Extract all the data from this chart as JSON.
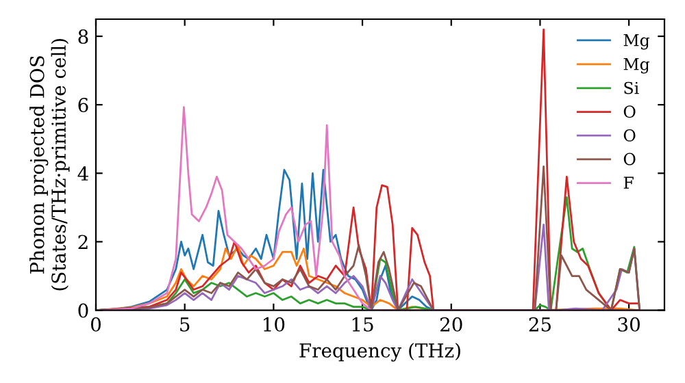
{
  "chart_data": {
    "type": "line",
    "xlabel": "Frequency (THz)",
    "ylabel": "Phonon projected DOS\n(States/THz·primitive cell)",
    "xlim": [
      0,
      32
    ],
    "ylim": [
      0,
      8.5
    ],
    "xticks": [
      0,
      5,
      10,
      15,
      20,
      25,
      30
    ],
    "yticks": [
      0,
      2,
      4,
      6,
      8
    ],
    "legend": "top right",
    "grid": false,
    "series": [
      {
        "name": "Mg",
        "color": "#1f77b4",
        "x": [
          0,
          1,
          2,
          3,
          4,
          4.5,
          4.8,
          5,
          5.2,
          5.5,
          6,
          6.3,
          6.6,
          6.9,
          7.2,
          7.5,
          8,
          8.3,
          8.6,
          9,
          9.3,
          9.6,
          10,
          10.3,
          10.6,
          10.9,
          11.3,
          11.6,
          11.9,
          12.2,
          12.5,
          12.8,
          13.2,
          13.5,
          13.8,
          14.2,
          14.6,
          15,
          15.3,
          15.5,
          15.8,
          16,
          16.3,
          16.6,
          17,
          17.8,
          18.2,
          18.6,
          19,
          25,
          30.6
        ],
        "values": [
          0,
          0.03,
          0.1,
          0.25,
          0.6,
          1.2,
          2.0,
          1.6,
          1.8,
          1.2,
          2.2,
          1.4,
          1.3,
          2.9,
          2.2,
          1.6,
          1.8,
          1.6,
          1.5,
          1.8,
          1.5,
          2.2,
          1.5,
          2.9,
          4.1,
          3.8,
          1.5,
          3.7,
          1.5,
          4.0,
          2.0,
          4.1,
          2.0,
          2.2,
          1.5,
          1.0,
          0.9,
          0.6,
          0.2,
          0,
          0.3,
          0.9,
          1.3,
          0.5,
          0,
          0.4,
          0.3,
          0.1,
          0,
          0,
          0
        ]
      },
      {
        "name": "Mg",
        "color": "#ff7f0e",
        "x": [
          0,
          2,
          3,
          4,
          4.5,
          4.8,
          5.1,
          5.5,
          6,
          6.5,
          7,
          7.3,
          7.6,
          8,
          8.3,
          8.7,
          9,
          9.5,
          10,
          10.5,
          11,
          11.3,
          11.7,
          12,
          12.5,
          13,
          13.5,
          14,
          14.5,
          15,
          15.5,
          16,
          16.5,
          17,
          17.8,
          18.5,
          19,
          25,
          28,
          29.5,
          30.5
        ],
        "values": [
          0,
          0.08,
          0.2,
          0.4,
          0.8,
          1.2,
          0.9,
          0.7,
          1.0,
          0.9,
          1.2,
          1.8,
          1.5,
          1.9,
          1.3,
          1.6,
          1.5,
          1.2,
          1.3,
          1.7,
          1.7,
          1.3,
          1.8,
          1.0,
          0.9,
          0.8,
          0.7,
          0.5,
          0.4,
          0.3,
          0.1,
          0.3,
          0.2,
          0,
          0.1,
          0.05,
          0,
          0,
          0.05,
          0.05,
          0
        ]
      },
      {
        "name": "Si",
        "color": "#2ca02c",
        "x": [
          0,
          3,
          4,
          4.5,
          5,
          5.5,
          6,
          6.5,
          7,
          7.5,
          8,
          8.5,
          9,
          9.5,
          10,
          10.5,
          11,
          11.5,
          12,
          12.5,
          13,
          13.5,
          14,
          14.5,
          15,
          15.5,
          16,
          16.3,
          16.7,
          17,
          18,
          19,
          24.7,
          25,
          25.3,
          25.6,
          26,
          26.5,
          26.8,
          27.1,
          27.4,
          27.8,
          28.3,
          29,
          29.5,
          29.9,
          30.3,
          30.6
        ],
        "values": [
          0,
          0.1,
          0.2,
          0.5,
          0.9,
          0.5,
          0.6,
          0.8,
          0.7,
          0.8,
          0.6,
          0.4,
          0.5,
          0.4,
          0.5,
          0.3,
          0.4,
          0.2,
          0.3,
          0.2,
          0.3,
          0.2,
          0.2,
          0.1,
          0.1,
          0,
          1.5,
          1.4,
          0.5,
          0,
          0.1,
          0,
          0,
          0.15,
          0.1,
          0,
          1.5,
          3.3,
          1.8,
          1.7,
          1.8,
          1.2,
          0.5,
          0,
          1.2,
          1.1,
          1.85,
          0
        ]
      },
      {
        "name": "O",
        "color": "#d62728",
        "x": [
          0,
          3,
          4,
          4.5,
          4.8,
          5.1,
          5.5,
          6,
          6.5,
          7,
          7.5,
          7.8,
          8.2,
          8.6,
          9,
          9.5,
          10,
          10.5,
          11,
          11.5,
          12,
          12.5,
          13,
          13.5,
          14,
          14.5,
          14.8,
          15.2,
          15.5,
          15.8,
          16.1,
          16.4,
          16.7,
          17,
          17.5,
          17.8,
          18.1,
          18.5,
          18.8,
          19,
          24.6,
          25.2,
          25.6,
          25.9,
          26.2,
          26.5,
          26.9,
          27.3,
          27.7,
          28.3,
          29,
          29.5,
          30,
          30.5
        ],
        "values": [
          0,
          0.1,
          0.3,
          0.6,
          1.1,
          0.9,
          0.6,
          0.7,
          1.0,
          1.3,
          1.5,
          2.0,
          1.4,
          1.1,
          1.3,
          0.8,
          0.6,
          0.9,
          0.7,
          1.3,
          0.8,
          1.0,
          0.9,
          1.3,
          1.0,
          3.0,
          1.8,
          1.2,
          0,
          3.0,
          3.65,
          3.6,
          2.5,
          0,
          0,
          2.4,
          2.2,
          1.4,
          1.0,
          0,
          0,
          8.2,
          0,
          0,
          2.0,
          3.9,
          2.0,
          1.5,
          1.3,
          0.5,
          0,
          0.3,
          0.2,
          0.2
        ]
      },
      {
        "name": "O",
        "color": "#9467bd",
        "x": [
          0,
          3,
          4,
          4.5,
          5,
          5.5,
          6,
          6.5,
          7,
          7.5,
          8,
          8.5,
          9,
          9.5,
          10,
          10.5,
          11,
          11.5,
          12,
          12.5,
          13,
          13.5,
          14,
          14.5,
          15,
          15.5,
          16,
          16.3,
          16.7,
          17,
          17.8,
          18.2,
          18.6,
          19,
          24.7,
          25.2,
          25.5,
          26,
          27,
          28.5,
          29.3,
          29.6,
          30,
          30.3,
          30.6
        ],
        "values": [
          0,
          0.05,
          0.15,
          0.3,
          0.5,
          0.3,
          0.5,
          0.3,
          0.8,
          0.6,
          1.0,
          0.9,
          0.8,
          0.5,
          0.6,
          0.7,
          0.9,
          0.6,
          0.7,
          0.5,
          0.7,
          0.5,
          0.8,
          1.0,
          0.7,
          0,
          1.0,
          0.8,
          0.3,
          0,
          0.9,
          0.6,
          0.3,
          0,
          0,
          2.5,
          0,
          0,
          0.05,
          0,
          0.6,
          1.2,
          1.1,
          1.8,
          0
        ]
      },
      {
        "name": "O",
        "color": "#8c564b",
        "x": [
          0,
          3,
          4,
          4.5,
          5,
          5.5,
          6,
          6.5,
          7,
          7.5,
          8,
          8.5,
          9,
          9.5,
          10,
          10.5,
          11,
          11.5,
          12,
          12.5,
          13,
          13.5,
          14,
          14.5,
          14.8,
          15.2,
          15.5,
          15.9,
          16.2,
          16.5,
          17,
          17.9,
          18.3,
          18.7,
          19,
          24.7,
          25.2,
          25.6,
          25.9,
          26.2,
          26.5,
          26.8,
          27.2,
          27.6,
          28.3,
          29,
          29.5,
          30,
          30.3,
          30.6
        ],
        "values": [
          0,
          0.08,
          0.2,
          0.4,
          0.6,
          0.4,
          0.6,
          0.5,
          0.8,
          0.7,
          1.1,
          0.9,
          1.2,
          0.8,
          0.7,
          0.9,
          0.8,
          1.2,
          0.7,
          0.6,
          0.9,
          0.6,
          1.0,
          1.3,
          1.9,
          1.0,
          0,
          1.4,
          1.7,
          1.2,
          0,
          0.8,
          0.7,
          0.3,
          0,
          0,
          4.2,
          0,
          0,
          1.6,
          1.3,
          1.0,
          1.0,
          0.6,
          0.3,
          0,
          1.2,
          1.1,
          1.8,
          0
        ]
      },
      {
        "name": "F",
        "color": "#e377c2",
        "x": [
          0,
          2,
          3,
          4,
          4.5,
          4.7,
          4.95,
          5.2,
          5.4,
          5.8,
          6.2,
          6.5,
          6.8,
          7.1,
          7.4,
          7.8,
          8.2,
          8.6,
          9,
          9.5,
          10,
          10.3,
          10.7,
          11,
          11.4,
          11.8,
          12.1,
          12.4,
          12.8,
          13.0,
          13.3,
          13.7,
          14,
          14.5,
          15,
          15.5,
          16,
          19,
          25,
          30.6
        ],
        "values": [
          0,
          0.05,
          0.2,
          0.5,
          1.5,
          3.5,
          5.93,
          4.0,
          2.8,
          2.6,
          3.0,
          3.4,
          3.9,
          3.5,
          2.2,
          2.0,
          1.8,
          1.5,
          1.2,
          1.3,
          1.5,
          2.3,
          2.8,
          3.0,
          2.0,
          2.5,
          2.6,
          1.0,
          3.0,
          5.4,
          2.0,
          1.6,
          1.0,
          0.6,
          0.2,
          0,
          0,
          0,
          0,
          0
        ]
      }
    ]
  }
}
